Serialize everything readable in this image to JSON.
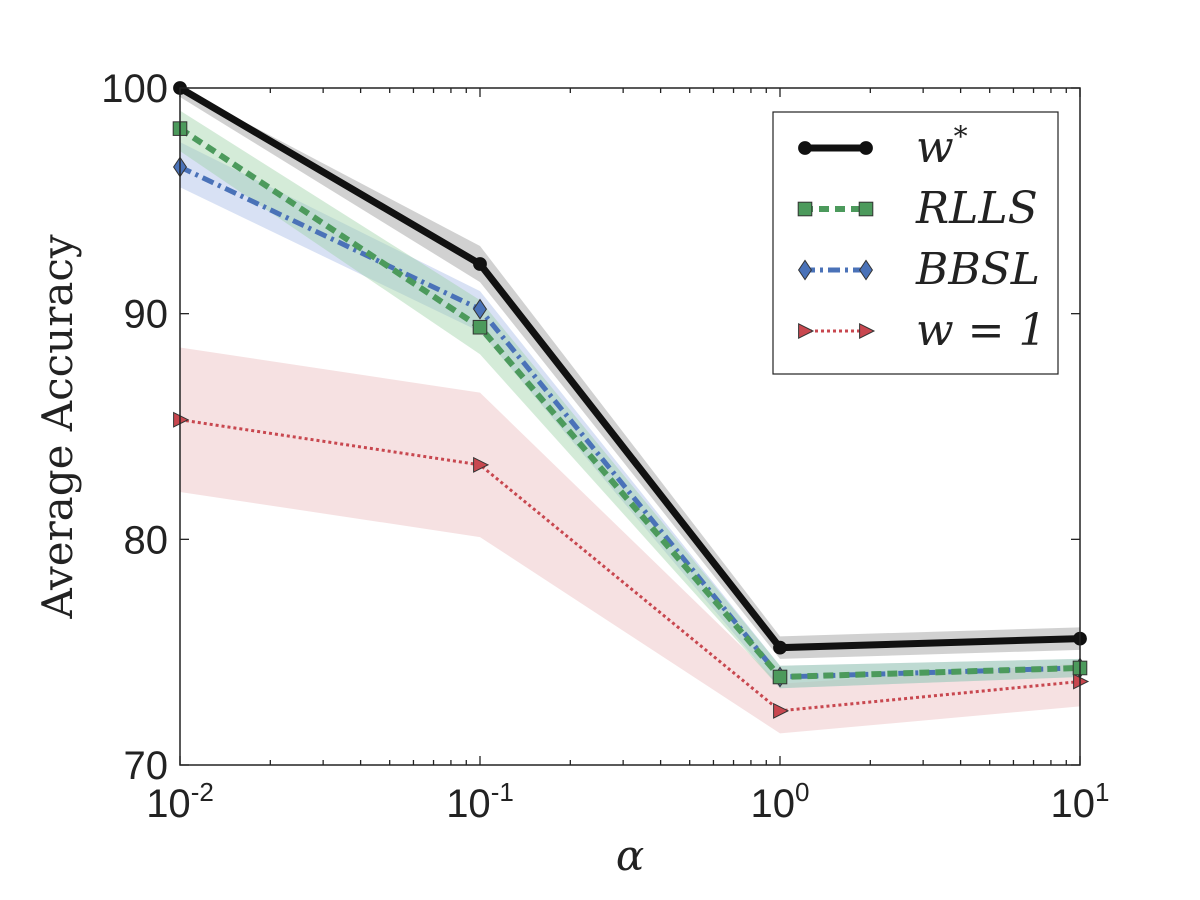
{
  "chart_data": {
    "type": "line",
    "xscale": "log",
    "x": [
      0.01,
      0.1,
      1,
      10
    ],
    "xlim": [
      0.01,
      10
    ],
    "ylim": [
      70,
      100
    ],
    "xlabel": "α",
    "ylabel": "Average Accuracy",
    "xticks": [
      {
        "base": "10",
        "exp": "-2"
      },
      {
        "base": "10",
        "exp": "-1"
      },
      {
        "base": "10",
        "exp": "0"
      },
      {
        "base": "10",
        "exp": "1"
      }
    ],
    "yticks": [
      "70",
      "80",
      "90",
      "100"
    ],
    "yticks_values": [
      70,
      80,
      90,
      100
    ],
    "grid": false,
    "legend_position": "top-right",
    "series": [
      {
        "name": "w*",
        "label_main": "w",
        "label_sup": "*",
        "values": [
          100,
          92.2,
          75.2,
          75.6
        ],
        "band_low": [
          99.6,
          91.4,
          74.7,
          75.1
        ],
        "band_high": [
          100.0,
          93.0,
          75.7,
          76.1
        ],
        "color": "#111111",
        "band_color": "#999999",
        "marker": "circle"
      },
      {
        "name": "RLLS",
        "label_main": "RLLS",
        "label_sup": "",
        "values": [
          98.2,
          89.4,
          73.9,
          74.3
        ],
        "band_low": [
          97.2,
          88.2,
          73.4,
          73.9
        ],
        "band_high": [
          99.0,
          90.6,
          74.4,
          74.7
        ],
        "color": "#4c9a5c",
        "band_color": "#9fd3a8",
        "marker": "square"
      },
      {
        "name": "BBSL",
        "label_main": "BBSL",
        "label_sup": "",
        "values": [
          96.5,
          90.2,
          73.9,
          74.3
        ],
        "band_low": [
          95.6,
          89.2,
          73.4,
          73.9
        ],
        "band_high": [
          97.6,
          91.0,
          74.4,
          74.7
        ],
        "color": "#4a72b8",
        "band_color": "#a9bde6",
        "marker": "diamond"
      },
      {
        "name": "w = 1",
        "label_main": "w = 1",
        "label_sup": "",
        "values": [
          85.3,
          83.3,
          72.4,
          73.7
        ],
        "band_low": [
          82.1,
          80.1,
          71.4,
          72.6
        ],
        "band_high": [
          88.5,
          86.5,
          73.6,
          74.5
        ],
        "color": "#c8474f",
        "band_color": "#ecbcbe",
        "marker": "triangle-right"
      }
    ]
  }
}
